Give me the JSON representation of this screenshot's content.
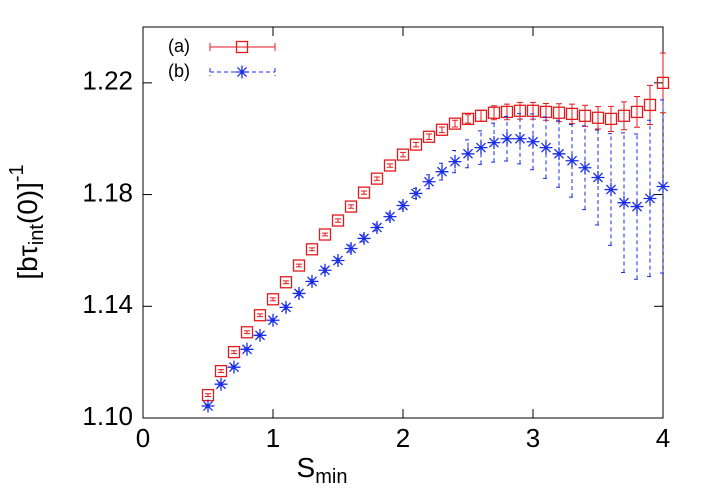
{
  "chart_data": {
    "type": "scatter",
    "xlabel": {
      "text": "S",
      "sub": "min"
    },
    "ylabel": {
      "text": "[bτ",
      "sub": "int",
      "rest": "(0)]",
      "sup": "-1"
    },
    "xlim": [
      0,
      4
    ],
    "ylim": [
      1.1,
      1.24
    ],
    "xticks": [
      0,
      1,
      2,
      3,
      4
    ],
    "yticks": [
      {
        "value": 1.1,
        "label": "1.10"
      },
      1.14,
      1.18,
      1.22
    ],
    "legend": "upper left",
    "x": [
      0.5,
      0.6,
      0.7,
      0.8,
      0.9,
      1.0,
      1.1,
      1.2,
      1.3,
      1.4,
      1.5,
      1.6,
      1.7,
      1.8,
      1.9,
      2.0,
      2.1,
      2.2,
      2.3,
      2.4,
      2.5,
      2.6,
      2.7,
      2.8,
      2.9,
      3.0,
      3.1,
      3.2,
      3.3,
      3.4,
      3.5,
      3.6,
      3.7,
      3.8,
      3.9,
      4.0
    ],
    "series": [
      {
        "name": "(a)",
        "color": "#e41a1c",
        "marker": "square",
        "dash": false,
        "values": [
          1.1082,
          1.1168,
          1.1236,
          1.1307,
          1.1368,
          1.1425,
          1.1486,
          1.1546,
          1.1604,
          1.1657,
          1.1707,
          1.1757,
          1.1807,
          1.1857,
          1.1904,
          1.1943,
          1.1979,
          1.2007,
          1.2032,
          1.2054,
          1.2071,
          1.2082,
          1.2093,
          1.2096,
          1.21,
          1.21,
          1.2096,
          1.2093,
          1.2089,
          1.2082,
          1.2075,
          1.2071,
          1.2082,
          1.2096,
          1.2121,
          1.22
        ],
        "errors": [
          0.0005,
          0.0005,
          0.0005,
          0.0005,
          0.0005,
          0.0005,
          0.0005,
          0.0005,
          0.0005,
          0.0005,
          0.0006,
          0.0006,
          0.0006,
          0.0006,
          0.0006,
          0.0008,
          0.0008,
          0.001,
          0.001,
          0.0012,
          0.0015,
          0.002,
          0.0025,
          0.0028,
          0.003,
          0.003,
          0.003,
          0.0032,
          0.0035,
          0.0038,
          0.004,
          0.0045,
          0.005,
          0.0055,
          0.007,
          0.0107
        ]
      },
      {
        "name": "(b)",
        "color": "#1a2ee8",
        "marker": "star",
        "dash": true,
        "values": [
          1.1043,
          1.1121,
          1.1182,
          1.1246,
          1.1296,
          1.135,
          1.1396,
          1.1446,
          1.1489,
          1.1529,
          1.1564,
          1.1607,
          1.1643,
          1.1682,
          1.1721,
          1.1761,
          1.1804,
          1.1846,
          1.1882,
          1.1918,
          1.1946,
          1.1968,
          1.1986,
          1.2,
          1.2,
          1.1989,
          1.1968,
          1.1946,
          1.1921,
          1.1896,
          1.1861,
          1.1818,
          1.1771,
          1.1757,
          1.1786,
          1.1829
        ],
        "errors": [
          0.0005,
          0.0005,
          0.0005,
          0.0005,
          0.0005,
          0.0005,
          0.0008,
          0.0008,
          0.0008,
          0.0008,
          0.0008,
          0.0012,
          0.0012,
          0.0012,
          0.0012,
          0.0012,
          0.0018,
          0.0025,
          0.003,
          0.004,
          0.005,
          0.006,
          0.007,
          0.008,
          0.009,
          0.01,
          0.011,
          0.012,
          0.013,
          0.015,
          0.017,
          0.02,
          0.025,
          0.026,
          0.028,
          0.031
        ]
      }
    ]
  }
}
